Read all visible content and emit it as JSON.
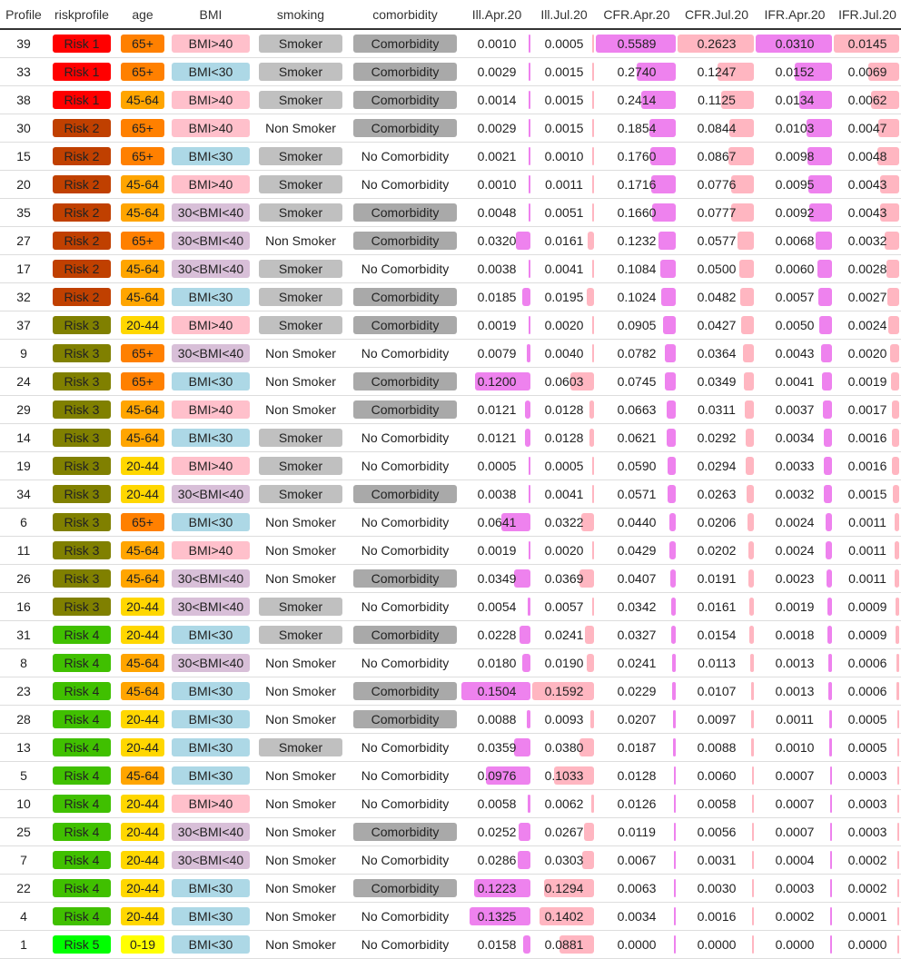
{
  "headers": [
    "Profile",
    "riskprofile",
    "age",
    "BMI",
    "smoking",
    "comorbidity",
    "Ill.Apr.20",
    "Ill.Jul.20",
    "CFR.Apr.20",
    "CFR.Jul.20",
    "IFR.Apr.20",
    "IFR.Jul.20"
  ],
  "colors": {
    "risk": {
      "Risk 1": "#ff0000",
      "Risk 2": "#c04000",
      "Risk 3": "#808000",
      "Risk 4": "#40c000",
      "Risk 5": "#00ff00"
    },
    "age": {
      "65+": "#ff8000",
      "45-64": "#ffa500",
      "20-44": "#ffd700",
      "0-19": "#ffff00"
    },
    "bmi": {
      "BMI>40": "#ffc0cb",
      "BMI<30": "#add8e6",
      "30<BMI<40": "#d8bfd8"
    },
    "smoking": {
      "Smoker": "#c0c0c0"
    },
    "comorbidity": {
      "Comorbidity": "#a9a9a9"
    },
    "bar_violet": "#ee82ee",
    "bar_pink": "#ffb6c1"
  },
  "rows": [
    {
      "profile": "39",
      "risk": "Risk 1",
      "age": "65+",
      "bmi": "BMI>40",
      "smoking": "Smoker",
      "comorbidity": "Comorbidity",
      "ill_apr": "0.0010",
      "ill_jul": "0.0005",
      "cfr_apr": "0.5589",
      "cfr_jul": "0.2623",
      "ifr_apr": "0.0310",
      "ifr_jul": "0.0145"
    },
    {
      "profile": "33",
      "risk": "Risk 1",
      "age": "65+",
      "bmi": "BMI<30",
      "smoking": "Smoker",
      "comorbidity": "Comorbidity",
      "ill_apr": "0.0029",
      "ill_jul": "0.0015",
      "cfr_apr": "0.2740",
      "cfr_jul": "0.1247",
      "ifr_apr": "0.0152",
      "ifr_jul": "0.0069"
    },
    {
      "profile": "38",
      "risk": "Risk 1",
      "age": "45-64",
      "bmi": "BMI>40",
      "smoking": "Smoker",
      "comorbidity": "Comorbidity",
      "ill_apr": "0.0014",
      "ill_jul": "0.0015",
      "cfr_apr": "0.2414",
      "cfr_jul": "0.1125",
      "ifr_apr": "0.0134",
      "ifr_jul": "0.0062"
    },
    {
      "profile": "30",
      "risk": "Risk 2",
      "age": "65+",
      "bmi": "BMI>40",
      "smoking": "Non Smoker",
      "comorbidity": "Comorbidity",
      "ill_apr": "0.0029",
      "ill_jul": "0.0015",
      "cfr_apr": "0.1854",
      "cfr_jul": "0.0844",
      "ifr_apr": "0.0103",
      "ifr_jul": "0.0047"
    },
    {
      "profile": "15",
      "risk": "Risk 2",
      "age": "65+",
      "bmi": "BMI<30",
      "smoking": "Smoker",
      "comorbidity": "No Comorbidity",
      "ill_apr": "0.0021",
      "ill_jul": "0.0010",
      "cfr_apr": "0.1760",
      "cfr_jul": "0.0867",
      "ifr_apr": "0.0098",
      "ifr_jul": "0.0048"
    },
    {
      "profile": "20",
      "risk": "Risk 2",
      "age": "45-64",
      "bmi": "BMI>40",
      "smoking": "Smoker",
      "comorbidity": "No Comorbidity",
      "ill_apr": "0.0010",
      "ill_jul": "0.0011",
      "cfr_apr": "0.1716",
      "cfr_jul": "0.0776",
      "ifr_apr": "0.0095",
      "ifr_jul": "0.0043"
    },
    {
      "profile": "35",
      "risk": "Risk 2",
      "age": "45-64",
      "bmi": "30<BMI<40",
      "smoking": "Smoker",
      "comorbidity": "Comorbidity",
      "ill_apr": "0.0048",
      "ill_jul": "0.0051",
      "cfr_apr": "0.1660",
      "cfr_jul": "0.0777",
      "ifr_apr": "0.0092",
      "ifr_jul": "0.0043"
    },
    {
      "profile": "27",
      "risk": "Risk 2",
      "age": "65+",
      "bmi": "30<BMI<40",
      "smoking": "Non Smoker",
      "comorbidity": "Comorbidity",
      "ill_apr": "0.0320",
      "ill_jul": "0.0161",
      "cfr_apr": "0.1232",
      "cfr_jul": "0.0577",
      "ifr_apr": "0.0068",
      "ifr_jul": "0.0032"
    },
    {
      "profile": "17",
      "risk": "Risk 2",
      "age": "45-64",
      "bmi": "30<BMI<40",
      "smoking": "Smoker",
      "comorbidity": "No Comorbidity",
      "ill_apr": "0.0038",
      "ill_jul": "0.0041",
      "cfr_apr": "0.1084",
      "cfr_jul": "0.0500",
      "ifr_apr": "0.0060",
      "ifr_jul": "0.0028"
    },
    {
      "profile": "32",
      "risk": "Risk 2",
      "age": "45-64",
      "bmi": "BMI<30",
      "smoking": "Smoker",
      "comorbidity": "Comorbidity",
      "ill_apr": "0.0185",
      "ill_jul": "0.0195",
      "cfr_apr": "0.1024",
      "cfr_jul": "0.0482",
      "ifr_apr": "0.0057",
      "ifr_jul": "0.0027"
    },
    {
      "profile": "37",
      "risk": "Risk 3",
      "age": "20-44",
      "bmi": "BMI>40",
      "smoking": "Smoker",
      "comorbidity": "Comorbidity",
      "ill_apr": "0.0019",
      "ill_jul": "0.0020",
      "cfr_apr": "0.0905",
      "cfr_jul": "0.0427",
      "ifr_apr": "0.0050",
      "ifr_jul": "0.0024"
    },
    {
      "profile": "9",
      "risk": "Risk 3",
      "age": "65+",
      "bmi": "30<BMI<40",
      "smoking": "Non Smoker",
      "comorbidity": "No Comorbidity",
      "ill_apr": "0.0079",
      "ill_jul": "0.0040",
      "cfr_apr": "0.0782",
      "cfr_jul": "0.0364",
      "ifr_apr": "0.0043",
      "ifr_jul": "0.0020"
    },
    {
      "profile": "24",
      "risk": "Risk 3",
      "age": "65+",
      "bmi": "BMI<30",
      "smoking": "Non Smoker",
      "comorbidity": "Comorbidity",
      "ill_apr": "0.1200",
      "ill_jul": "0.0603",
      "cfr_apr": "0.0745",
      "cfr_jul": "0.0349",
      "ifr_apr": "0.0041",
      "ifr_jul": "0.0019"
    },
    {
      "profile": "29",
      "risk": "Risk 3",
      "age": "45-64",
      "bmi": "BMI>40",
      "smoking": "Non Smoker",
      "comorbidity": "Comorbidity",
      "ill_apr": "0.0121",
      "ill_jul": "0.0128",
      "cfr_apr": "0.0663",
      "cfr_jul": "0.0311",
      "ifr_apr": "0.0037",
      "ifr_jul": "0.0017"
    },
    {
      "profile": "14",
      "risk": "Risk 3",
      "age": "45-64",
      "bmi": "BMI<30",
      "smoking": "Smoker",
      "comorbidity": "No Comorbidity",
      "ill_apr": "0.0121",
      "ill_jul": "0.0128",
      "cfr_apr": "0.0621",
      "cfr_jul": "0.0292",
      "ifr_apr": "0.0034",
      "ifr_jul": "0.0016"
    },
    {
      "profile": "19",
      "risk": "Risk 3",
      "age": "20-44",
      "bmi": "BMI>40",
      "smoking": "Smoker",
      "comorbidity": "No Comorbidity",
      "ill_apr": "0.0005",
      "ill_jul": "0.0005",
      "cfr_apr": "0.0590",
      "cfr_jul": "0.0294",
      "ifr_apr": "0.0033",
      "ifr_jul": "0.0016"
    },
    {
      "profile": "34",
      "risk": "Risk 3",
      "age": "20-44",
      "bmi": "30<BMI<40",
      "smoking": "Smoker",
      "comorbidity": "Comorbidity",
      "ill_apr": "0.0038",
      "ill_jul": "0.0041",
      "cfr_apr": "0.0571",
      "cfr_jul": "0.0263",
      "ifr_apr": "0.0032",
      "ifr_jul": "0.0015"
    },
    {
      "profile": "6",
      "risk": "Risk 3",
      "age": "65+",
      "bmi": "BMI<30",
      "smoking": "Non Smoker",
      "comorbidity": "No Comorbidity",
      "ill_apr": "0.0641",
      "ill_jul": "0.0322",
      "cfr_apr": "0.0440",
      "cfr_jul": "0.0206",
      "ifr_apr": "0.0024",
      "ifr_jul": "0.0011"
    },
    {
      "profile": "11",
      "risk": "Risk 3",
      "age": "45-64",
      "bmi": "BMI>40",
      "smoking": "Non Smoker",
      "comorbidity": "No Comorbidity",
      "ill_apr": "0.0019",
      "ill_jul": "0.0020",
      "cfr_apr": "0.0429",
      "cfr_jul": "0.0202",
      "ifr_apr": "0.0024",
      "ifr_jul": "0.0011"
    },
    {
      "profile": "26",
      "risk": "Risk 3",
      "age": "45-64",
      "bmi": "30<BMI<40",
      "smoking": "Non Smoker",
      "comorbidity": "Comorbidity",
      "ill_apr": "0.0349",
      "ill_jul": "0.0369",
      "cfr_apr": "0.0407",
      "cfr_jul": "0.0191",
      "ifr_apr": "0.0023",
      "ifr_jul": "0.0011"
    },
    {
      "profile": "16",
      "risk": "Risk 3",
      "age": "20-44",
      "bmi": "30<BMI<40",
      "smoking": "Smoker",
      "comorbidity": "No Comorbidity",
      "ill_apr": "0.0054",
      "ill_jul": "0.0057",
      "cfr_apr": "0.0342",
      "cfr_jul": "0.0161",
      "ifr_apr": "0.0019",
      "ifr_jul": "0.0009"
    },
    {
      "profile": "31",
      "risk": "Risk 4",
      "age": "20-44",
      "bmi": "BMI<30",
      "smoking": "Smoker",
      "comorbidity": "Comorbidity",
      "ill_apr": "0.0228",
      "ill_jul": "0.0241",
      "cfr_apr": "0.0327",
      "cfr_jul": "0.0154",
      "ifr_apr": "0.0018",
      "ifr_jul": "0.0009"
    },
    {
      "profile": "8",
      "risk": "Risk 4",
      "age": "45-64",
      "bmi": "30<BMI<40",
      "smoking": "Non Smoker",
      "comorbidity": "No Comorbidity",
      "ill_apr": "0.0180",
      "ill_jul": "0.0190",
      "cfr_apr": "0.0241",
      "cfr_jul": "0.0113",
      "ifr_apr": "0.0013",
      "ifr_jul": "0.0006"
    },
    {
      "profile": "23",
      "risk": "Risk 4",
      "age": "45-64",
      "bmi": "BMI<30",
      "smoking": "Non Smoker",
      "comorbidity": "Comorbidity",
      "ill_apr": "0.1504",
      "ill_jul": "0.1592",
      "cfr_apr": "0.0229",
      "cfr_jul": "0.0107",
      "ifr_apr": "0.0013",
      "ifr_jul": "0.0006"
    },
    {
      "profile": "28",
      "risk": "Risk 4",
      "age": "20-44",
      "bmi": "BMI<30",
      "smoking": "Non Smoker",
      "comorbidity": "Comorbidity",
      "ill_apr": "0.0088",
      "ill_jul": "0.0093",
      "cfr_apr": "0.0207",
      "cfr_jul": "0.0097",
      "ifr_apr": "0.0011",
      "ifr_jul": "0.0005"
    },
    {
      "profile": "13",
      "risk": "Risk 4",
      "age": "20-44",
      "bmi": "BMI<30",
      "smoking": "Smoker",
      "comorbidity": "No Comorbidity",
      "ill_apr": "0.0359",
      "ill_jul": "0.0380",
      "cfr_apr": "0.0187",
      "cfr_jul": "0.0088",
      "ifr_apr": "0.0010",
      "ifr_jul": "0.0005"
    },
    {
      "profile": "5",
      "risk": "Risk 4",
      "age": "45-64",
      "bmi": "BMI<30",
      "smoking": "Non Smoker",
      "comorbidity": "No Comorbidity",
      "ill_apr": "0.0976",
      "ill_jul": "0.1033",
      "cfr_apr": "0.0128",
      "cfr_jul": "0.0060",
      "ifr_apr": "0.0007",
      "ifr_jul": "0.0003"
    },
    {
      "profile": "10",
      "risk": "Risk 4",
      "age": "20-44",
      "bmi": "BMI>40",
      "smoking": "Non Smoker",
      "comorbidity": "No Comorbidity",
      "ill_apr": "0.0058",
      "ill_jul": "0.0062",
      "cfr_apr": "0.0126",
      "cfr_jul": "0.0058",
      "ifr_apr": "0.0007",
      "ifr_jul": "0.0003"
    },
    {
      "profile": "25",
      "risk": "Risk 4",
      "age": "20-44",
      "bmi": "30<BMI<40",
      "smoking": "Non Smoker",
      "comorbidity": "Comorbidity",
      "ill_apr": "0.0252",
      "ill_jul": "0.0267",
      "cfr_apr": "0.0119",
      "cfr_jul": "0.0056",
      "ifr_apr": "0.0007",
      "ifr_jul": "0.0003"
    },
    {
      "profile": "7",
      "risk": "Risk 4",
      "age": "20-44",
      "bmi": "30<BMI<40",
      "smoking": "Non Smoker",
      "comorbidity": "No Comorbidity",
      "ill_apr": "0.0286",
      "ill_jul": "0.0303",
      "cfr_apr": "0.0067",
      "cfr_jul": "0.0031",
      "ifr_apr": "0.0004",
      "ifr_jul": "0.0002"
    },
    {
      "profile": "22",
      "risk": "Risk 4",
      "age": "20-44",
      "bmi": "BMI<30",
      "smoking": "Non Smoker",
      "comorbidity": "Comorbidity",
      "ill_apr": "0.1223",
      "ill_jul": "0.1294",
      "cfr_apr": "0.0063",
      "cfr_jul": "0.0030",
      "ifr_apr": "0.0003",
      "ifr_jul": "0.0002"
    },
    {
      "profile": "4",
      "risk": "Risk 4",
      "age": "20-44",
      "bmi": "BMI<30",
      "smoking": "Non Smoker",
      "comorbidity": "No Comorbidity",
      "ill_apr": "0.1325",
      "ill_jul": "0.1402",
      "cfr_apr": "0.0034",
      "cfr_jul": "0.0016",
      "ifr_apr": "0.0002",
      "ifr_jul": "0.0001"
    },
    {
      "profile": "1",
      "risk": "Risk 5",
      "age": "0-19",
      "bmi": "BMI<30",
      "smoking": "Non Smoker",
      "comorbidity": "No Comorbidity",
      "ill_apr": "0.0158",
      "ill_jul": "0.0881",
      "cfr_apr": "0.0000",
      "cfr_jul": "0.0000",
      "ifr_apr": "0.0000",
      "ifr_jul": "0.0000"
    }
  ]
}
